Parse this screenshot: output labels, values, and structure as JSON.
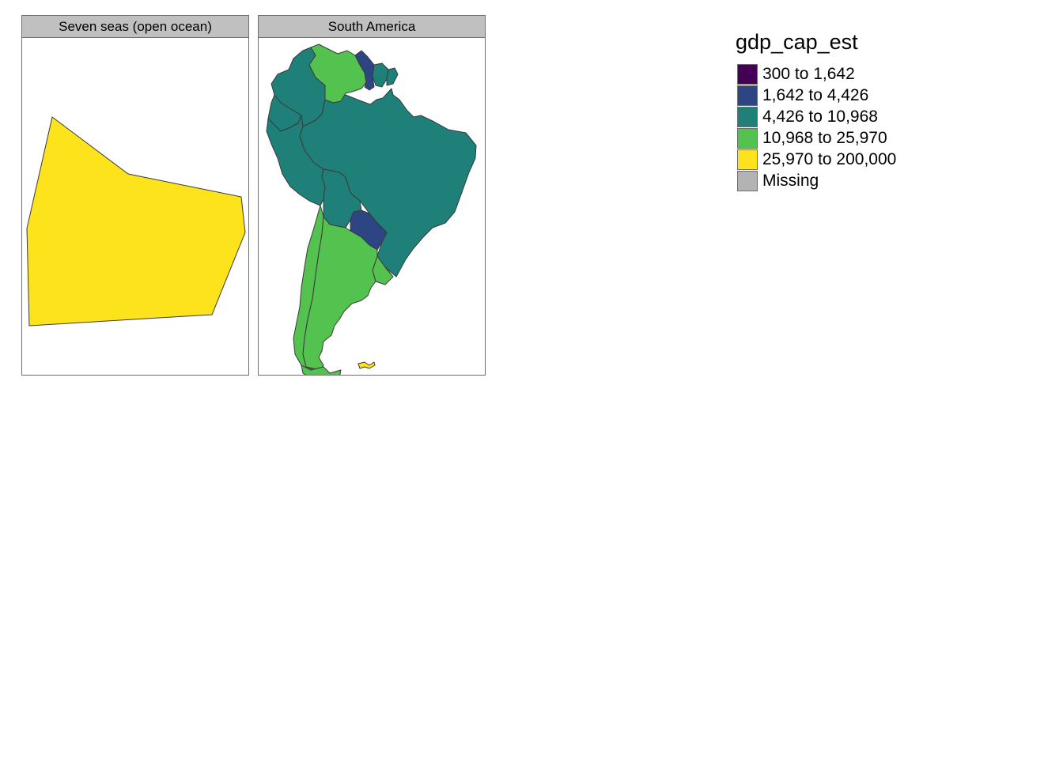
{
  "colors": {
    "c1": "#440154",
    "c2": "#2d4582",
    "c3": "#1f7f79",
    "c4": "#53c24f",
    "c5": "#fde31b",
    "missing": "#b3b3b3",
    "border": "#3a3a3a"
  },
  "panels": [
    {
      "title": "Seven seas (open ocean)"
    },
    {
      "title": "South America"
    }
  ],
  "legend": {
    "title": "gdp_cap_est",
    "items": [
      {
        "label": "300 to 1,642",
        "color": "#440154"
      },
      {
        "label": "1,642 to 4,426",
        "color": "#2d4582"
      },
      {
        "label": "4,426 to 10,968",
        "color": "#1f7f79"
      },
      {
        "label": "10,968 to 25,970",
        "color": "#53c24f"
      },
      {
        "label": "25,970 to 200,000",
        "color": "#fde31b"
      },
      {
        "label": "Missing",
        "color": "#b3b3b3"
      }
    ]
  }
}
